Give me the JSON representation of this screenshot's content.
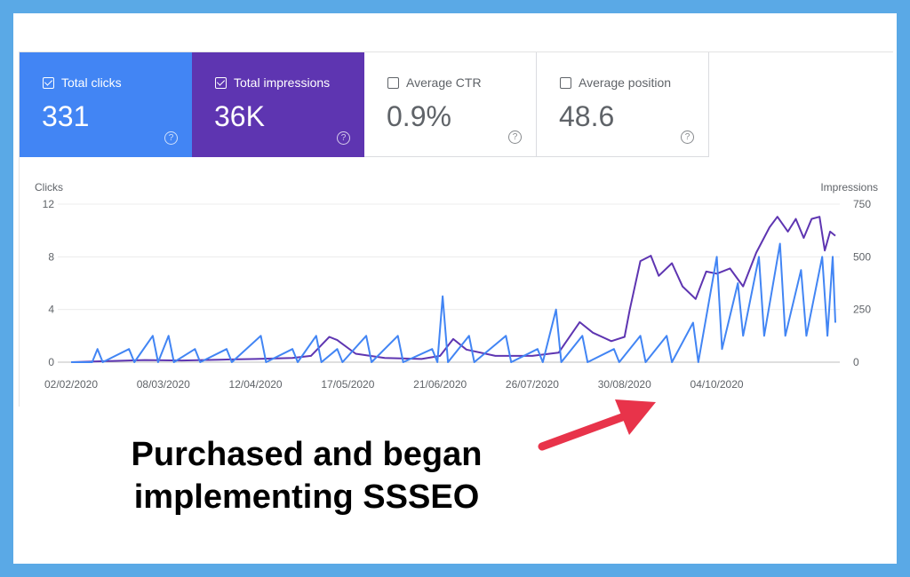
{
  "cards": [
    {
      "label": "Total clicks",
      "value": "331",
      "checked": true,
      "color": "#4285f4"
    },
    {
      "label": "Total impressions",
      "value": "36K",
      "checked": true,
      "color": "#5e35b1"
    },
    {
      "label": "Average CTR",
      "value": "0.9%",
      "checked": false
    },
    {
      "label": "Average position",
      "value": "48.6",
      "checked": false
    }
  ],
  "help_glyph": "?",
  "annotation": {
    "line1": "Purchased and began",
    "line2": "implementing SSSEO",
    "arrow_color": "#e8334a"
  },
  "chart_data": {
    "type": "line",
    "y_left": {
      "label": "Clicks",
      "range": [
        0,
        12
      ],
      "ticks": [
        "0",
        "4",
        "8",
        "12"
      ],
      "tick_values": [
        0,
        4,
        8,
        12
      ]
    },
    "y_right": {
      "label": "Impressions",
      "range": [
        0,
        750
      ],
      "ticks": [
        "0",
        "250",
        "500",
        "750"
      ],
      "tick_values": [
        0,
        250,
        500,
        750
      ]
    },
    "x_range": [
      "2020-02-02",
      "2020-11-18"
    ],
    "x_ticks": [
      {
        "label": "02/02/2020",
        "date": "2020-02-02"
      },
      {
        "label": "08/03/2020",
        "date": "2020-03-08"
      },
      {
        "label": "12/04/2020",
        "date": "2020-04-12"
      },
      {
        "label": "17/05/2020",
        "date": "2020-05-17"
      },
      {
        "label": "21/06/2020",
        "date": "2020-06-21"
      },
      {
        "label": "26/07/2020",
        "date": "2020-07-26"
      },
      {
        "label": "30/08/2020",
        "date": "2020-08-30"
      },
      {
        "label": "04/10/2020",
        "date": "2020-10-04"
      }
    ],
    "grid": true,
    "series": [
      {
        "axis": "right",
        "color": "#5e35b1",
        "points": [
          [
            "2020-02-02",
            0
          ],
          [
            "2020-02-16",
            5
          ],
          [
            "2020-03-01",
            10
          ],
          [
            "2020-03-15",
            8
          ],
          [
            "2020-03-29",
            12
          ],
          [
            "2020-04-12",
            15
          ],
          [
            "2020-04-26",
            20
          ],
          [
            "2020-05-03",
            30
          ],
          [
            "2020-05-10",
            120
          ],
          [
            "2020-05-13",
            105
          ],
          [
            "2020-05-20",
            40
          ],
          [
            "2020-05-31",
            20
          ],
          [
            "2020-06-14",
            15
          ],
          [
            "2020-06-21",
            30
          ],
          [
            "2020-06-26",
            110
          ],
          [
            "2020-07-01",
            60
          ],
          [
            "2020-07-12",
            30
          ],
          [
            "2020-07-26",
            30
          ],
          [
            "2020-08-05",
            45
          ],
          [
            "2020-08-13",
            190
          ],
          [
            "2020-08-18",
            140
          ],
          [
            "2020-08-25",
            100
          ],
          [
            "2020-08-30",
            120
          ],
          [
            "2020-09-01",
            250
          ],
          [
            "2020-09-05",
            480
          ],
          [
            "2020-09-09",
            505
          ],
          [
            "2020-09-12",
            410
          ],
          [
            "2020-09-17",
            470
          ],
          [
            "2020-09-21",
            360
          ],
          [
            "2020-09-26",
            300
          ],
          [
            "2020-09-30",
            430
          ],
          [
            "2020-10-04",
            420
          ],
          [
            "2020-10-09",
            445
          ],
          [
            "2020-10-14",
            360
          ],
          [
            "2020-10-19",
            520
          ],
          [
            "2020-10-24",
            640
          ],
          [
            "2020-10-27",
            690
          ],
          [
            "2020-10-31",
            620
          ],
          [
            "2020-11-03",
            680
          ],
          [
            "2020-11-06",
            590
          ],
          [
            "2020-11-09",
            680
          ],
          [
            "2020-11-12",
            690
          ],
          [
            "2020-11-14",
            530
          ],
          [
            "2020-11-16",
            620
          ],
          [
            "2020-11-18",
            600
          ]
        ]
      },
      {
        "axis": "left",
        "color": "#4285f4",
        "points": [
          [
            "2020-02-02",
            0
          ],
          [
            "2020-02-10",
            0
          ],
          [
            "2020-02-12",
            1
          ],
          [
            "2020-02-14",
            0
          ],
          [
            "2020-02-24",
            1
          ],
          [
            "2020-02-26",
            0
          ],
          [
            "2020-03-04",
            2
          ],
          [
            "2020-03-06",
            0
          ],
          [
            "2020-03-10",
            2
          ],
          [
            "2020-03-12",
            0
          ],
          [
            "2020-03-20",
            1
          ],
          [
            "2020-03-22",
            0
          ],
          [
            "2020-04-01",
            1
          ],
          [
            "2020-04-03",
            0
          ],
          [
            "2020-04-14",
            2
          ],
          [
            "2020-04-16",
            0
          ],
          [
            "2020-04-26",
            1
          ],
          [
            "2020-04-28",
            0
          ],
          [
            "2020-05-05",
            2
          ],
          [
            "2020-05-07",
            0
          ],
          [
            "2020-05-13",
            1
          ],
          [
            "2020-05-15",
            0
          ],
          [
            "2020-05-24",
            2
          ],
          [
            "2020-05-26",
            0
          ],
          [
            "2020-06-05",
            2
          ],
          [
            "2020-06-07",
            0
          ],
          [
            "2020-06-18",
            1
          ],
          [
            "2020-06-20",
            0
          ],
          [
            "2020-06-22",
            5
          ],
          [
            "2020-06-24",
            0
          ],
          [
            "2020-07-02",
            2
          ],
          [
            "2020-07-04",
            0
          ],
          [
            "2020-07-16",
            2
          ],
          [
            "2020-07-18",
            0
          ],
          [
            "2020-07-28",
            1
          ],
          [
            "2020-07-30",
            0
          ],
          [
            "2020-08-04",
            4
          ],
          [
            "2020-08-06",
            0
          ],
          [
            "2020-08-14",
            2
          ],
          [
            "2020-08-16",
            0
          ],
          [
            "2020-08-26",
            1
          ],
          [
            "2020-08-28",
            0
          ],
          [
            "2020-09-05",
            2
          ],
          [
            "2020-09-07",
            0
          ],
          [
            "2020-09-15",
            2
          ],
          [
            "2020-09-17",
            0
          ],
          [
            "2020-09-25",
            3
          ],
          [
            "2020-09-27",
            0
          ],
          [
            "2020-10-04",
            8
          ],
          [
            "2020-10-06",
            1
          ],
          [
            "2020-10-12",
            6
          ],
          [
            "2020-10-14",
            2
          ],
          [
            "2020-10-20",
            8
          ],
          [
            "2020-10-22",
            2
          ],
          [
            "2020-10-28",
            9
          ],
          [
            "2020-10-30",
            2
          ],
          [
            "2020-11-05",
            7
          ],
          [
            "2020-11-07",
            2
          ],
          [
            "2020-11-13",
            8
          ],
          [
            "2020-11-15",
            2
          ],
          [
            "2020-11-17",
            8
          ],
          [
            "2020-11-18",
            3
          ]
        ]
      }
    ]
  }
}
